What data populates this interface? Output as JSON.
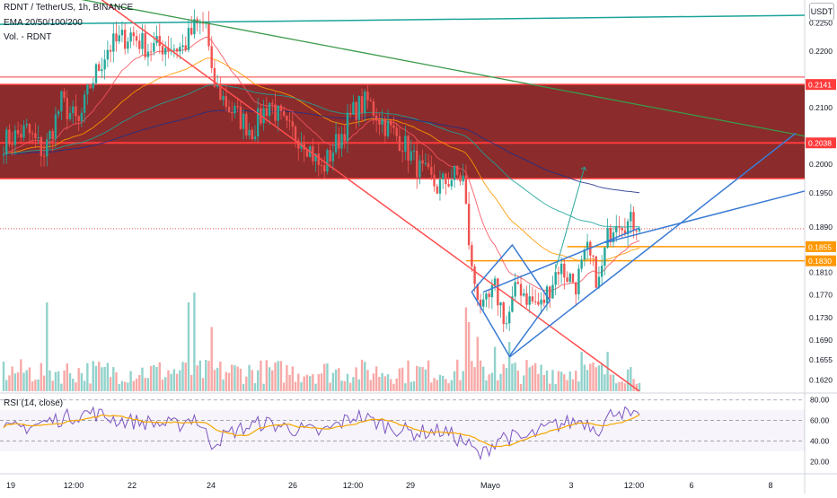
{
  "header": {
    "symbol_line": "RDNT / TetherUS, 1h, BINANCE",
    "ema_line": "EMA 20/50/100/200",
    "vol_line": "Vol. - RDNT",
    "currency_button": "USDT"
  },
  "rsi": {
    "label": "RSI (14, close)",
    "levels": [
      80.0,
      60.0,
      40.0,
      20.0
    ],
    "level_labels": [
      "80.00",
      "60.00",
      "40.00",
      "20.00"
    ],
    "ylim": [
      15,
      85
    ]
  },
  "colors": {
    "up": "#26a69a",
    "down": "#ef5350",
    "zone": "#7b0e0e",
    "zone_line": "#ff3b3b",
    "blue": "#2962ff",
    "orange": "#ff9800",
    "teal": "#1aa39a",
    "rsi": "#7e57c2",
    "rsi_ma": "#f7a600"
  },
  "chart_data": {
    "type": "candlestick",
    "title": "RDNT / TetherUS, 1h, BINANCE",
    "ylim": [
      0.16,
      0.229
    ],
    "y_ticks": [
      "0.2250",
      "0.2200",
      "0.2141",
      "0.2100",
      "0.2038",
      "0.2000",
      "0.1950",
      "0.1890",
      "0.1855",
      "0.1830",
      "0.1810",
      "0.1770",
      "0.1730",
      "0.1690",
      "0.1655",
      "0.1620"
    ],
    "highlighted_levels": [
      {
        "label": "0.2141",
        "value": 0.2141,
        "color": "#ff3b3b"
      },
      {
        "label": "0.2038",
        "value": 0.2038,
        "color": "#ff3b3b"
      },
      {
        "label": "0.1855",
        "value": 0.1855,
        "color": "#ff9800"
      },
      {
        "label": "0.1830",
        "value": 0.183,
        "color": "#ff9800"
      }
    ],
    "resistance_zone": {
      "top": 0.2141,
      "bottom": 0.1975
    },
    "x_labels": [
      "19",
      "12:00",
      "22",
      "24",
      "26",
      "12:00",
      "29",
      "Mayo",
      "3",
      "12:00",
      "6",
      "8"
    ],
    "price_anchors": [
      [
        0,
        0.204
      ],
      [
        8,
        0.206
      ],
      [
        14,
        0.202
      ],
      [
        20,
        0.211
      ],
      [
        26,
        0.207
      ],
      [
        30,
        0.214
      ],
      [
        36,
        0.2205
      ],
      [
        44,
        0.223
      ],
      [
        50,
        0.2205
      ],
      [
        56,
        0.221
      ],
      [
        62,
        0.2205
      ],
      [
        66,
        0.224
      ],
      [
        70,
        0.225
      ],
      [
        72,
        0.215
      ],
      [
        78,
        0.21
      ],
      [
        86,
        0.206
      ],
      [
        92,
        0.211
      ],
      [
        98,
        0.206
      ],
      [
        104,
        0.2045
      ],
      [
        110,
        0.199
      ],
      [
        116,
        0.2045
      ],
      [
        122,
        0.21
      ],
      [
        126,
        0.211
      ],
      [
        132,
        0.207
      ],
      [
        138,
        0.204
      ],
      [
        144,
        0.199
      ],
      [
        150,
        0.196
      ],
      [
        156,
        0.198
      ],
      [
        159,
        0.1975
      ],
      [
        162,
        0.181
      ],
      [
        166,
        0.174
      ],
      [
        170,
        0.178
      ],
      [
        174,
        0.172
      ],
      [
        178,
        0.179
      ],
      [
        182,
        0.176
      ],
      [
        186,
        0.175
      ],
      [
        192,
        0.182
      ],
      [
        198,
        0.179
      ],
      [
        202,
        0.1845
      ],
      [
        206,
        0.179
      ],
      [
        209,
        0.187
      ],
      [
        212,
        0.191
      ],
      [
        216,
        0.1895
      ],
      [
        220,
        0.19
      ]
    ],
    "ema_periods": [
      20,
      50,
      100,
      200
    ],
    "rsi_anchors": [
      [
        0,
        50
      ],
      [
        10,
        55
      ],
      [
        20,
        62
      ],
      [
        30,
        68
      ],
      [
        40,
        60
      ],
      [
        50,
        58
      ],
      [
        60,
        55
      ],
      [
        66,
        64
      ],
      [
        72,
        38
      ],
      [
        80,
        50
      ],
      [
        90,
        58
      ],
      [
        100,
        52
      ],
      [
        110,
        48
      ],
      [
        122,
        65
      ],
      [
        132,
        55
      ],
      [
        142,
        48
      ],
      [
        152,
        50
      ],
      [
        160,
        38
      ],
      [
        165,
        25
      ],
      [
        172,
        45
      ],
      [
        180,
        42
      ],
      [
        190,
        55
      ],
      [
        200,
        60
      ],
      [
        206,
        52
      ],
      [
        212,
        72
      ],
      [
        216,
        65
      ],
      [
        220,
        60
      ]
    ],
    "volume_spikes": [
      [
        15,
        0.9
      ],
      [
        64,
        0.9
      ],
      [
        66,
        1.0
      ],
      [
        72,
        0.65
      ],
      [
        160,
        0.85
      ],
      [
        161,
        0.7
      ],
      [
        164,
        0.55
      ],
      [
        170,
        0.45
      ],
      [
        175,
        0.5
      ],
      [
        200,
        0.4
      ],
      [
        209,
        0.4
      ]
    ],
    "grid": true,
    "n_bars": 221
  }
}
